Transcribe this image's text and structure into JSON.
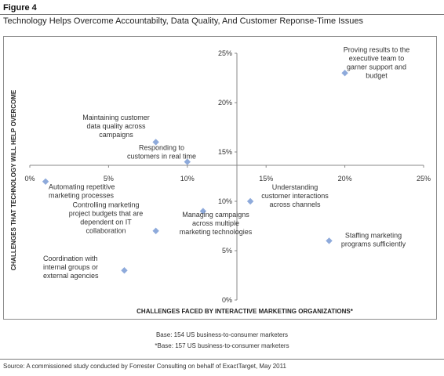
{
  "figure_label": "Figure 4",
  "figure_title": "Technology Helps Overcome Accountabilty, Data Quality, And Customer Reponse-Time Issues",
  "base_note_1": "Base: 154 US business-to-consumer marketers",
  "base_note_2": "*Base: 157 US business-to-consumer marketers",
  "source": "Source: A commissioned study conducted by Forrester Consulting on behalf of ExactTarget, May 2011",
  "chart_data": {
    "type": "scatter",
    "title": "",
    "xlabel": "CHALLENGES FACED BY INTERACTIVE MARKETING ORGANIZATIONS*",
    "ylabel": "CHALLENGES THAT TECHNOLOGY WILL HELP OVERCOME",
    "xlim": [
      0,
      25
    ],
    "ylim": [
      0,
      25
    ],
    "x_ticks": [
      "0%",
      "5%",
      "10%",
      "15%",
      "20%",
      "25%"
    ],
    "y_ticks": [
      "0%",
      "5%",
      "10%",
      "15%",
      "20%",
      "25%"
    ],
    "grid": false,
    "marker_color": "#8eaadb",
    "points": [
      {
        "label": [
          "Proving results to the",
          "executive team to",
          "garner support and",
          "budget"
        ],
        "x": 20,
        "y": 23
      },
      {
        "label": [
          "Maintaining customer",
          "data quality across",
          "campaigns"
        ],
        "x": 8,
        "y": 16
      },
      {
        "label": [
          "Responding to",
          "customers in real time"
        ],
        "x": 10,
        "y": 14
      },
      {
        "label": [
          "Automating repetitive",
          "marketing processes"
        ],
        "x": 1,
        "y": 12
      },
      {
        "label": [
          "Understanding",
          "customer interactions",
          "across channels"
        ],
        "x": 14,
        "y": 10
      },
      {
        "label": [
          "Managing campaigns",
          "across multiple",
          "marketing technologies"
        ],
        "x": 11,
        "y": 9
      },
      {
        "label": [
          "Controlling marketing",
          "project budgets that are",
          "dependent on IT",
          "collaboration"
        ],
        "x": 8,
        "y": 7
      },
      {
        "label": [
          "Staffing marketing",
          "programs sufficiently"
        ],
        "x": 19,
        "y": 6
      },
      {
        "label": [
          "Coordination with",
          "internal groups or",
          "external agencies"
        ],
        "x": 6,
        "y": 3
      }
    ]
  }
}
